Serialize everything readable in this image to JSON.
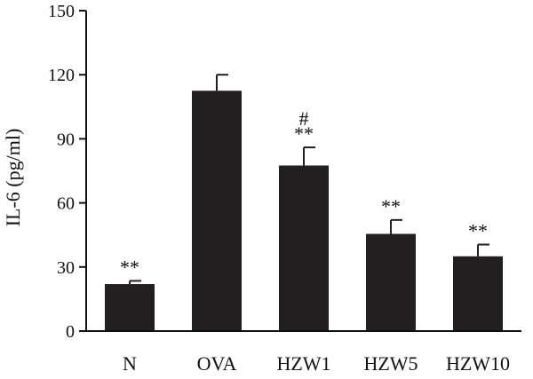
{
  "chart_data": {
    "type": "bar",
    "ylabel": "IL-6 (pg/ml)",
    "ylim": [
      0,
      150
    ],
    "yticks": [
      0,
      30,
      60,
      90,
      120,
      150
    ],
    "categories": [
      "N",
      "OVA",
      "HZW1",
      "HZW5",
      "HZW10"
    ],
    "values": [
      22,
      112.5,
      77.5,
      45.5,
      35
    ],
    "errors": [
      1.5,
      7.5,
      8.5,
      6.5,
      5.5
    ],
    "annotations": [
      "**",
      "",
      "#\n**",
      "**",
      "**"
    ],
    "bar_color": "#231f20"
  }
}
